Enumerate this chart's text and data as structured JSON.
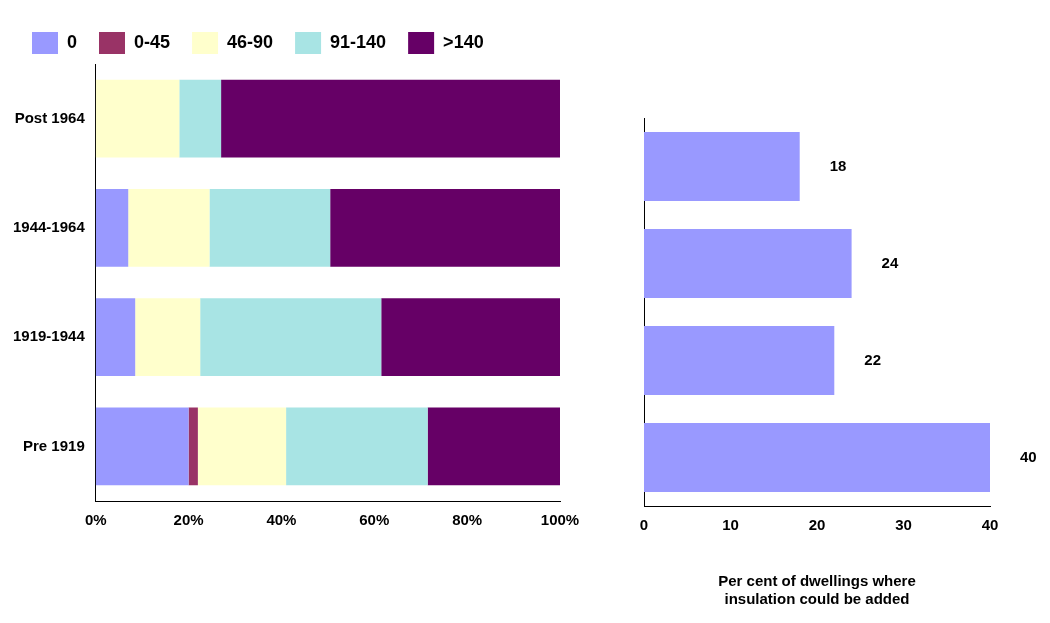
{
  "chart_data": [
    {
      "type": "bar",
      "orientation": "horizontal",
      "stacked": true,
      "categories": [
        "Post 1964",
        "1944-1964",
        "1919-1944",
        "Pre 1919"
      ],
      "series": [
        {
          "name": "0",
          "color": "#9999ff",
          "values": [
            0,
            7,
            8.5,
            20
          ]
        },
        {
          "name": "0-45",
          "color": "#993366",
          "values": [
            0,
            0,
            0,
            2
          ]
        },
        {
          "name": "46-90",
          "color": "#ffffcc",
          "values": [
            18,
            17.5,
            14,
            19
          ]
        },
        {
          "name": "91-140",
          "color": "#a8e4e4",
          "values": [
            9,
            26,
            39,
            30.5
          ]
        },
        {
          "name": ">140",
          "color": "#660066",
          "values": [
            73,
            49.5,
            38.5,
            28.5
          ]
        }
      ],
      "xlim": [
        0,
        100
      ],
      "xticks": [
        {
          "value": 0,
          "label": "0%"
        },
        {
          "value": 20,
          "label": "20%"
        },
        {
          "value": 40,
          "label": "40%"
        },
        {
          "value": 60,
          "label": "60%"
        },
        {
          "value": 80,
          "label": "80%"
        },
        {
          "value": 100,
          "label": "100%"
        }
      ],
      "grid": false,
      "legend": "top left"
    },
    {
      "type": "bar",
      "orientation": "horizontal",
      "categories": [
        null,
        null,
        null,
        null
      ],
      "values": [
        18,
        24,
        22,
        40
      ],
      "color": "#9999ff",
      "data_labels": true,
      "xlim": [
        0,
        40
      ],
      "xticks": [
        0,
        10,
        20,
        30,
        40
      ],
      "xlabel": "Per cent of dwellings where insulation could be added",
      "grid": false
    }
  ]
}
